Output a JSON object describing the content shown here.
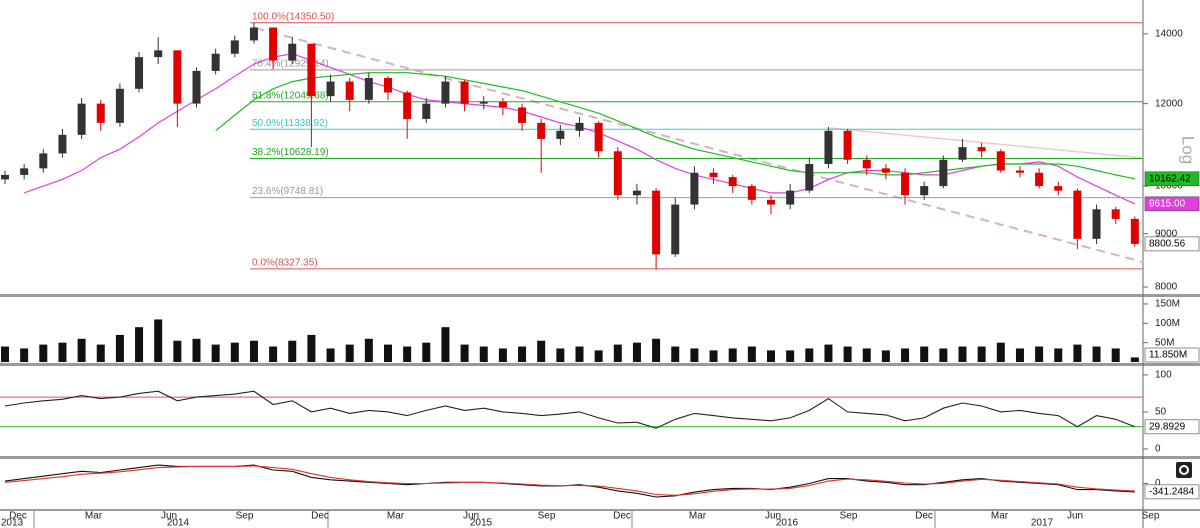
{
  "chart_data": [
    {
      "type": "candlestick",
      "open": [
        10150,
        10250,
        10400,
        10750,
        11200,
        12000,
        11500,
        12400,
        13300,
        13500,
        12000,
        12900,
        13400,
        13800,
        14200,
        13200,
        13700,
        12200,
        12600,
        12100,
        12700,
        12300,
        11600,
        12000,
        12600,
        12000,
        12050,
        11900,
        11500,
        11100,
        11300,
        11500,
        10800,
        9800,
        9900,
        8600,
        9600,
        10300,
        10200,
        10000,
        9700,
        9600,
        9900,
        10500,
        11300,
        10600,
        10400,
        10300,
        9800,
        10000,
        10600,
        10900,
        10800,
        10350,
        10300,
        10000,
        9900,
        8900,
        9500,
        9300
      ],
      "high": [
        10350,
        10500,
        10850,
        11350,
        12150,
        12100,
        12550,
        13450,
        13900,
        13500,
        13000,
        13550,
        13950,
        14350,
        14200,
        13900,
        13700,
        12800,
        12700,
        12850,
        12750,
        12350,
        12150,
        12750,
        12650,
        12200,
        12150,
        12000,
        11600,
        11450,
        11650,
        11550,
        10900,
        10050,
        9950,
        9750,
        10450,
        10400,
        10250,
        10050,
        9800,
        10050,
        10650,
        11400,
        11350,
        10700,
        10500,
        10400,
        10100,
        10700,
        11100,
        11000,
        10850,
        10450,
        10400,
        10100,
        9950,
        9600,
        9550,
        9350
      ],
      "low": [
        10050,
        10150,
        10300,
        10650,
        11100,
        11300,
        11400,
        12300,
        13100,
        11400,
        11900,
        12800,
        13300,
        13700,
        12950,
        13100,
        10900,
        12050,
        11800,
        12000,
        12100,
        11100,
        11500,
        11900,
        11800,
        11850,
        11700,
        11300,
        10300,
        10950,
        11150,
        10650,
        9700,
        9600,
        8327,
        8550,
        9500,
        10050,
        9850,
        9600,
        9400,
        9500,
        9850,
        10400,
        10500,
        10250,
        10150,
        9600,
        9700,
        9950,
        10550,
        10650,
        10300,
        10200,
        9950,
        9800,
        8700,
        8800,
        9200,
        8750
      ],
      "close": [
        10250,
        10400,
        10750,
        11200,
        12000,
        11500,
        12400,
        13300,
        13500,
        12000,
        12900,
        13400,
        13800,
        14200,
        13200,
        13700,
        12200,
        12600,
        12100,
        12700,
        12300,
        11600,
        12000,
        12600,
        12000,
        12050,
        11900,
        11500,
        11100,
        11300,
        11500,
        10800,
        9800,
        9900,
        8600,
        9600,
        10300,
        10200,
        10000,
        9700,
        9600,
        9900,
        10500,
        11300,
        10600,
        10400,
        10300,
        9800,
        10000,
        10600,
        10900,
        10800,
        10350,
        10300,
        10000,
        9900,
        8900,
        9500,
        9300,
        8800.56
      ],
      "up_color": "#333333",
      "down_color": "#e00000",
      "last_label": "8800.56",
      "log_scale": true,
      "y_label": "Log",
      "ylim": [
        7895,
        15090
      ],
      "yticks": [
        8000,
        9000,
        10000,
        12000,
        14000
      ],
      "overlays": [
        {
          "color": "#e040e0",
          "last_label": "9615.00",
          "values": [
            null,
            9850,
            10000,
            10150,
            10350,
            10650,
            10850,
            11150,
            11500,
            11800,
            12100,
            12400,
            12750,
            13100,
            13300,
            13400,
            13200,
            13000,
            12800,
            12600,
            12450,
            12250,
            12100,
            12050,
            12000,
            11950,
            11900,
            11800,
            11650,
            11500,
            11400,
            11250,
            11050,
            10850,
            10600,
            10400,
            10250,
            10150,
            10050,
            9950,
            9850,
            9850,
            9950,
            10150,
            10300,
            10350,
            10350,
            10300,
            10250,
            10250,
            10350,
            10450,
            10500,
            10500,
            10550,
            10450,
            10200,
            10000,
            9800,
            9615
          ]
        },
        {
          "color": "#22bb22",
          "last_label": "10162.42",
          "values": [
            null,
            null,
            null,
            null,
            null,
            null,
            null,
            null,
            null,
            null,
            null,
            11300,
            11700,
            12100,
            12400,
            12600,
            12700,
            12750,
            12800,
            12850,
            12850,
            12850,
            12800,
            12750,
            12650,
            12550,
            12450,
            12350,
            12200,
            12050,
            11900,
            11750,
            11550,
            11350,
            11150,
            11000,
            10850,
            10750,
            10650,
            10550,
            10450,
            10350,
            10300,
            10300,
            10300,
            10300,
            10250,
            10250,
            10300,
            10350,
            10400,
            10450,
            10500,
            10500,
            10500,
            10500,
            10450,
            10350,
            10250,
            10162.42
          ]
        }
      ],
      "fib_levels": [
        {
          "label": "100.0%(14350.50)",
          "value": 14350.5,
          "color": "#e05050"
        },
        {
          "label": "76.4%(12929.14)",
          "value": 12929.14,
          "color": "#999999"
        },
        {
          "label": "61.8%(12049.68)",
          "value": 12049.68,
          "color": "#22aa22"
        },
        {
          "label": "50.0%(11338.92)",
          "value": 11338.92,
          "color": "#33cccc"
        },
        {
          "label": "38.2%(10628.19)",
          "value": 10628.19,
          "color": "#22aa22"
        },
        {
          "label": "23.6%(9748.81)",
          "value": 9748.81,
          "color": "#999999"
        },
        {
          "label": "0.0%(8327.35)",
          "value": 8327.35,
          "color": "#e05050"
        }
      ],
      "x_axis": {
        "months": [
          "Dec",
          "Mar",
          "Jun",
          "Sep",
          "Dec",
          "Mar",
          "Jun",
          "Sep",
          "Dec",
          "Mar",
          "Jun",
          "Sep",
          "Dec",
          "Mar",
          "Jun",
          "Sep"
        ],
        "years": [
          "2013",
          "2014",
          "2015",
          "2016",
          "2017"
        ]
      }
    },
    {
      "type": "bar",
      "color": "#111111",
      "values": [
        40,
        35,
        45,
        50,
        60,
        45,
        70,
        90,
        110,
        55,
        60,
        45,
        50,
        55,
        40,
        55,
        70,
        35,
        45,
        60,
        45,
        40,
        50,
        90,
        45,
        40,
        35,
        40,
        55,
        35,
        40,
        30,
        45,
        50,
        60,
        40,
        35,
        30,
        35,
        40,
        30,
        30,
        35,
        45,
        40,
        35,
        30,
        35,
        40,
        35,
        40,
        40,
        50,
        35,
        40,
        35,
        45,
        40,
        35,
        11.85
      ],
      "last_label": "11.850M",
      "ylim": [
        0,
        168
      ],
      "yticks": [
        {
          "value": 50,
          "label": "50M"
        },
        {
          "value": 100,
          "label": "100M"
        },
        {
          "value": 150,
          "label": "150M"
        }
      ]
    },
    {
      "type": "line",
      "color": "#222222",
      "values": [
        58,
        62,
        65,
        67,
        72,
        68,
        70,
        75,
        78,
        65,
        70,
        72,
        74,
        78,
        60,
        65,
        50,
        55,
        48,
        52,
        50,
        45,
        52,
        58,
        52,
        55,
        50,
        48,
        45,
        47,
        50,
        42,
        35,
        36,
        28,
        40,
        48,
        45,
        42,
        40,
        38,
        42,
        52,
        68,
        50,
        48,
        46,
        38,
        42,
        55,
        62,
        58,
        50,
        52,
        48,
        45,
        30,
        45,
        40,
        29.8929
      ],
      "last_label": "29.8929",
      "ylim": [
        -9.5,
        112
      ],
      "yticks": [
        0,
        50,
        100
      ],
      "levels": [
        {
          "value": 70,
          "color": "#e05050"
        },
        {
          "value": 30,
          "color": "#22bb22"
        }
      ]
    },
    {
      "type": "line",
      "series": [
        {
          "color": "#111111",
          "values": [
            100,
            200,
            300,
            400,
            500,
            450,
            550,
            650,
            750,
            700,
            700,
            700,
            700,
            750,
            550,
            500,
            250,
            150,
            100,
            50,
            0,
            -50,
            0,
            50,
            50,
            50,
            0,
            -50,
            -100,
            -100,
            -50,
            -150,
            -300,
            -400,
            -550,
            -500,
            -350,
            -250,
            -200,
            -200,
            -250,
            -150,
            0,
            200,
            200,
            100,
            50,
            -50,
            -50,
            50,
            150,
            200,
            100,
            50,
            0,
            -50,
            -250,
            -250,
            -300,
            -341.2484
          ]
        },
        {
          "color": "#e03030",
          "values": [
            50,
            120,
            200,
            280,
            380,
            420,
            480,
            560,
            650,
            680,
            700,
            700,
            700,
            720,
            650,
            580,
            400,
            250,
            150,
            80,
            30,
            0,
            0,
            20,
            40,
            40,
            20,
            -20,
            -70,
            -90,
            -80,
            -100,
            -200,
            -300,
            -450,
            -480,
            -420,
            -320,
            -250,
            -220,
            -230,
            -200,
            -80,
            100,
            180,
            150,
            90,
            20,
            -20,
            0,
            100,
            170,
            130,
            80,
            30,
            -20,
            -150,
            -220,
            -270,
            -310
          ]
        }
      ],
      "last_label": "-341.2484",
      "ylim": [
        -1000,
        960
      ],
      "yticks": [
        0
      ]
    }
  ]
}
